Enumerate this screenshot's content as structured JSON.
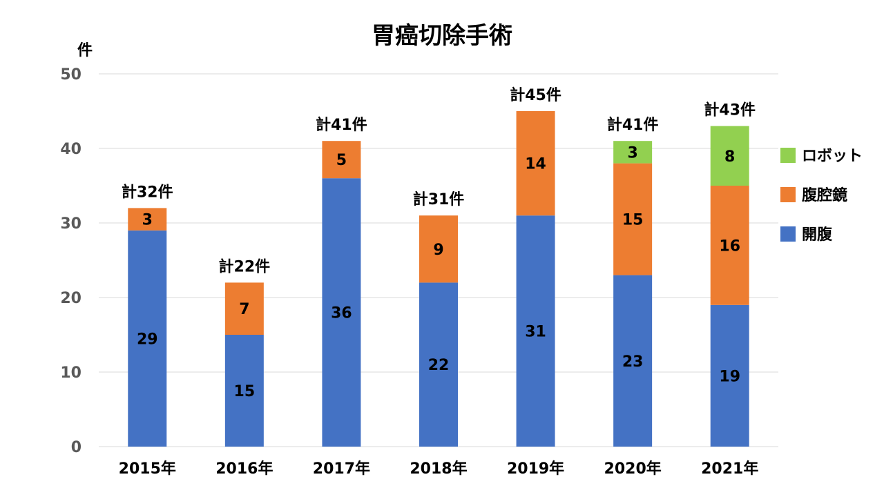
{
  "chart_data": {
    "type": "bar",
    "stacked": true,
    "title": "胃癌切除手術",
    "ylabel": "件",
    "xlabel": "",
    "ylim": [
      0,
      50
    ],
    "yticks": [
      0,
      10,
      20,
      30,
      40,
      50
    ],
    "grid": true,
    "legend_position": "right",
    "categories": [
      "2015年",
      "2016年",
      "2017年",
      "2018年",
      "2019年",
      "2020年",
      "2021年"
    ],
    "series": [
      {
        "name": "開腹",
        "color": "#4472C4",
        "values": [
          29,
          15,
          36,
          22,
          31,
          23,
          19
        ]
      },
      {
        "name": "腹腔鏡",
        "color": "#ED7D31",
        "values": [
          3,
          7,
          5,
          9,
          14,
          15,
          16
        ]
      },
      {
        "name": "ロボット",
        "color": "#92D050",
        "values": [
          0,
          0,
          0,
          0,
          0,
          3,
          8
        ]
      }
    ],
    "total_labels": [
      "計32件",
      "計22件",
      "計41件",
      "計31件",
      "計45件",
      "計41件",
      "計43件"
    ]
  }
}
